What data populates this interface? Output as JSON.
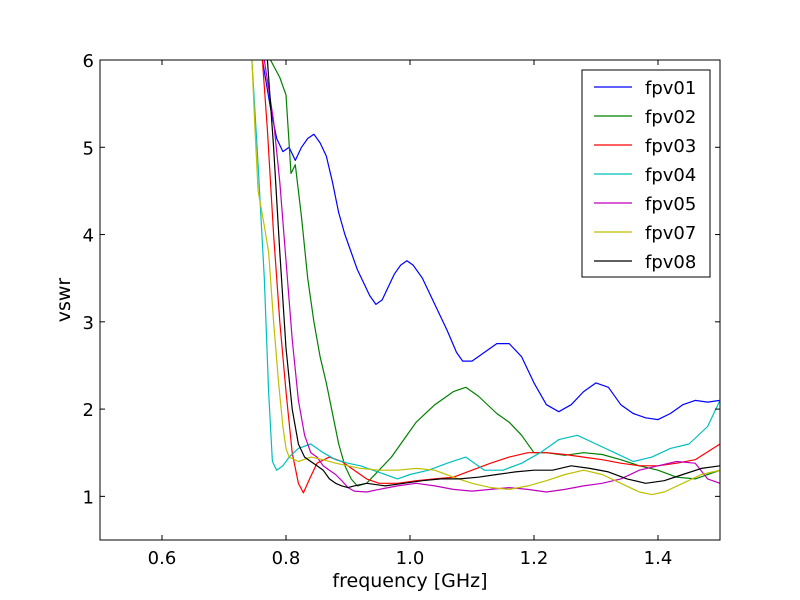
{
  "chart_data": {
    "type": "line",
    "title": "",
    "xlabel": "frequency [GHz]",
    "ylabel": "vswr",
    "xlim": [
      0.5,
      1.5
    ],
    "ylim": [
      0.5,
      6
    ],
    "xticks": [
      0.6,
      0.8,
      1.0,
      1.2,
      1.4
    ],
    "xtick_labels": [
      "0.6",
      "0.8",
      "1.0",
      "1.2",
      "1.4"
    ],
    "yticks": [
      1,
      2,
      3,
      4,
      5,
      6
    ],
    "ytick_labels": [
      "1",
      "2",
      "3",
      "4",
      "5",
      "6"
    ],
    "grid": false,
    "legend_position": "top-right",
    "series": [
      {
        "name": "fpv01",
        "color": "#0000ff",
        "points": [
          [
            0.762,
            6.0
          ],
          [
            0.775,
            5.45
          ],
          [
            0.785,
            5.1
          ],
          [
            0.795,
            4.95
          ],
          [
            0.805,
            5.0
          ],
          [
            0.815,
            4.85
          ],
          [
            0.825,
            5.0
          ],
          [
            0.835,
            5.1
          ],
          [
            0.845,
            5.15
          ],
          [
            0.855,
            5.05
          ],
          [
            0.865,
            4.9
          ],
          [
            0.875,
            4.6
          ],
          [
            0.885,
            4.25
          ],
          [
            0.895,
            4.0
          ],
          [
            0.905,
            3.8
          ],
          [
            0.915,
            3.6
          ],
          [
            0.925,
            3.45
          ],
          [
            0.935,
            3.3
          ],
          [
            0.945,
            3.2
          ],
          [
            0.955,
            3.25
          ],
          [
            0.965,
            3.4
          ],
          [
            0.975,
            3.55
          ],
          [
            0.985,
            3.65
          ],
          [
            0.995,
            3.7
          ],
          [
            1.005,
            3.65
          ],
          [
            1.02,
            3.5
          ],
          [
            1.04,
            3.2
          ],
          [
            1.06,
            2.9
          ],
          [
            1.075,
            2.65
          ],
          [
            1.085,
            2.55
          ],
          [
            1.1,
            2.55
          ],
          [
            1.12,
            2.65
          ],
          [
            1.14,
            2.75
          ],
          [
            1.16,
            2.75
          ],
          [
            1.18,
            2.6
          ],
          [
            1.2,
            2.3
          ],
          [
            1.22,
            2.05
          ],
          [
            1.24,
            1.97
          ],
          [
            1.26,
            2.05
          ],
          [
            1.28,
            2.2
          ],
          [
            1.3,
            2.3
          ],
          [
            1.32,
            2.25
          ],
          [
            1.34,
            2.05
          ],
          [
            1.36,
            1.95
          ],
          [
            1.38,
            1.9
          ],
          [
            1.4,
            1.88
          ],
          [
            1.42,
            1.95
          ],
          [
            1.44,
            2.05
          ],
          [
            1.46,
            2.1
          ],
          [
            1.48,
            2.08
          ],
          [
            1.5,
            2.1
          ]
        ]
      },
      {
        "name": "fpv02",
        "color": "#008000",
        "points": [
          [
            0.775,
            6.0
          ],
          [
            0.79,
            5.8
          ],
          [
            0.8,
            5.6
          ],
          [
            0.808,
            4.7
          ],
          [
            0.815,
            4.8
          ],
          [
            0.825,
            4.2
          ],
          [
            0.835,
            3.5
          ],
          [
            0.845,
            3.0
          ],
          [
            0.855,
            2.6
          ],
          [
            0.865,
            2.3
          ],
          [
            0.875,
            1.95
          ],
          [
            0.885,
            1.6
          ],
          [
            0.895,
            1.35
          ],
          [
            0.905,
            1.2
          ],
          [
            0.915,
            1.12
          ],
          [
            0.93,
            1.15
          ],
          [
            0.95,
            1.3
          ],
          [
            0.97,
            1.45
          ],
          [
            0.99,
            1.65
          ],
          [
            1.01,
            1.85
          ],
          [
            1.04,
            2.05
          ],
          [
            1.07,
            2.2
          ],
          [
            1.09,
            2.25
          ],
          [
            1.11,
            2.15
          ],
          [
            1.14,
            1.95
          ],
          [
            1.16,
            1.85
          ],
          [
            1.18,
            1.7
          ],
          [
            1.2,
            1.5
          ],
          [
            1.22,
            1.5
          ],
          [
            1.25,
            1.47
          ],
          [
            1.28,
            1.5
          ],
          [
            1.31,
            1.48
          ],
          [
            1.34,
            1.42
          ],
          [
            1.37,
            1.35
          ],
          [
            1.4,
            1.3
          ],
          [
            1.43,
            1.22
          ],
          [
            1.46,
            1.2
          ],
          [
            1.5,
            1.3
          ]
        ]
      },
      {
        "name": "fpv03",
        "color": "#ff0000",
        "points": [
          [
            0.762,
            6.0
          ],
          [
            0.77,
            5.2
          ],
          [
            0.78,
            4.0
          ],
          [
            0.79,
            3.0
          ],
          [
            0.8,
            2.2
          ],
          [
            0.81,
            1.5
          ],
          [
            0.82,
            1.15
          ],
          [
            0.828,
            1.04
          ],
          [
            0.838,
            1.2
          ],
          [
            0.85,
            1.38
          ],
          [
            0.87,
            1.45
          ],
          [
            0.89,
            1.4
          ],
          [
            0.91,
            1.3
          ],
          [
            0.93,
            1.2
          ],
          [
            0.95,
            1.15
          ],
          [
            0.98,
            1.15
          ],
          [
            1.01,
            1.18
          ],
          [
            1.04,
            1.2
          ],
          [
            1.07,
            1.22
          ],
          [
            1.1,
            1.3
          ],
          [
            1.13,
            1.38
          ],
          [
            1.16,
            1.45
          ],
          [
            1.19,
            1.5
          ],
          [
            1.22,
            1.5
          ],
          [
            1.25,
            1.48
          ],
          [
            1.28,
            1.45
          ],
          [
            1.31,
            1.42
          ],
          [
            1.34,
            1.38
          ],
          [
            1.37,
            1.35
          ],
          [
            1.4,
            1.35
          ],
          [
            1.43,
            1.38
          ],
          [
            1.46,
            1.42
          ],
          [
            1.5,
            1.6
          ]
        ]
      },
      {
        "name": "fpv04",
        "color": "#00bfbf",
        "points": [
          [
            0.745,
            6.0
          ],
          [
            0.755,
            4.8
          ],
          [
            0.765,
            3.5
          ],
          [
            0.772,
            2.2
          ],
          [
            0.778,
            1.4
          ],
          [
            0.785,
            1.3
          ],
          [
            0.795,
            1.35
          ],
          [
            0.805,
            1.45
          ],
          [
            0.82,
            1.55
          ],
          [
            0.84,
            1.6
          ],
          [
            0.86,
            1.5
          ],
          [
            0.88,
            1.42
          ],
          [
            0.9,
            1.38
          ],
          [
            0.92,
            1.35
          ],
          [
            0.94,
            1.3
          ],
          [
            0.96,
            1.25
          ],
          [
            0.98,
            1.2
          ],
          [
            1.0,
            1.25
          ],
          [
            1.03,
            1.3
          ],
          [
            1.06,
            1.38
          ],
          [
            1.09,
            1.45
          ],
          [
            1.12,
            1.3
          ],
          [
            1.15,
            1.3
          ],
          [
            1.18,
            1.38
          ],
          [
            1.21,
            1.5
          ],
          [
            1.24,
            1.65
          ],
          [
            1.27,
            1.7
          ],
          [
            1.3,
            1.6
          ],
          [
            1.33,
            1.5
          ],
          [
            1.36,
            1.4
          ],
          [
            1.39,
            1.45
          ],
          [
            1.42,
            1.55
          ],
          [
            1.45,
            1.6
          ],
          [
            1.48,
            1.8
          ],
          [
            1.5,
            2.1
          ]
        ]
      },
      {
        "name": "fpv05",
        "color": "#bf00bf",
        "points": [
          [
            0.765,
            6.0
          ],
          [
            0.78,
            5.3
          ],
          [
            0.79,
            4.6
          ],
          [
            0.8,
            3.7
          ],
          [
            0.81,
            2.8
          ],
          [
            0.82,
            2.1
          ],
          [
            0.83,
            1.7
          ],
          [
            0.84,
            1.5
          ],
          [
            0.85,
            1.45
          ],
          [
            0.86,
            1.35
          ],
          [
            0.87,
            1.3
          ],
          [
            0.88,
            1.25
          ],
          [
            0.89,
            1.18
          ],
          [
            0.9,
            1.1
          ],
          [
            0.91,
            1.06
          ],
          [
            0.93,
            1.05
          ],
          [
            0.95,
            1.08
          ],
          [
            0.98,
            1.12
          ],
          [
            1.01,
            1.15
          ],
          [
            1.04,
            1.12
          ],
          [
            1.07,
            1.08
          ],
          [
            1.1,
            1.06
          ],
          [
            1.13,
            1.08
          ],
          [
            1.16,
            1.1
          ],
          [
            1.19,
            1.08
          ],
          [
            1.22,
            1.05
          ],
          [
            1.25,
            1.08
          ],
          [
            1.28,
            1.12
          ],
          [
            1.31,
            1.15
          ],
          [
            1.34,
            1.2
          ],
          [
            1.37,
            1.3
          ],
          [
            1.4,
            1.35
          ],
          [
            1.43,
            1.4
          ],
          [
            1.46,
            1.38
          ],
          [
            1.48,
            1.2
          ],
          [
            1.5,
            1.15
          ]
        ]
      },
      {
        "name": "fpv07",
        "color": "#bfbf00",
        "points": [
          [
            0.745,
            6.0
          ],
          [
            0.75,
            5.2
          ],
          [
            0.755,
            4.5
          ],
          [
            0.765,
            4.1
          ],
          [
            0.772,
            3.8
          ],
          [
            0.78,
            3.0
          ],
          [
            0.788,
            2.3
          ],
          [
            0.795,
            1.8
          ],
          [
            0.8,
            1.55
          ],
          [
            0.805,
            1.45
          ],
          [
            0.82,
            1.4
          ],
          [
            0.84,
            1.45
          ],
          [
            0.86,
            1.42
          ],
          [
            0.88,
            1.38
          ],
          [
            0.9,
            1.35
          ],
          [
            0.92,
            1.32
          ],
          [
            0.95,
            1.3
          ],
          [
            0.98,
            1.3
          ],
          [
            1.01,
            1.32
          ],
          [
            1.04,
            1.3
          ],
          [
            1.07,
            1.22
          ],
          [
            1.1,
            1.15
          ],
          [
            1.13,
            1.1
          ],
          [
            1.16,
            1.08
          ],
          [
            1.19,
            1.12
          ],
          [
            1.22,
            1.18
          ],
          [
            1.25,
            1.25
          ],
          [
            1.28,
            1.3
          ],
          [
            1.31,
            1.25
          ],
          [
            1.34,
            1.15
          ],
          [
            1.37,
            1.05
          ],
          [
            1.39,
            1.02
          ],
          [
            1.41,
            1.05
          ],
          [
            1.44,
            1.15
          ],
          [
            1.47,
            1.25
          ],
          [
            1.5,
            1.3
          ]
        ]
      },
      {
        "name": "fpv08",
        "color": "#000000",
        "points": [
          [
            0.77,
            6.0
          ],
          [
            0.78,
            5.0
          ],
          [
            0.79,
            3.8
          ],
          [
            0.8,
            2.7
          ],
          [
            0.81,
            2.0
          ],
          [
            0.82,
            1.6
          ],
          [
            0.83,
            1.45
          ],
          [
            0.84,
            1.4
          ],
          [
            0.85,
            1.35
          ],
          [
            0.86,
            1.3
          ],
          [
            0.87,
            1.2
          ],
          [
            0.88,
            1.15
          ],
          [
            0.89,
            1.12
          ],
          [
            0.9,
            1.1
          ],
          [
            0.91,
            1.12
          ],
          [
            0.93,
            1.15
          ],
          [
            0.96,
            1.12
          ],
          [
            0.99,
            1.15
          ],
          [
            1.02,
            1.18
          ],
          [
            1.05,
            1.2
          ],
          [
            1.08,
            1.2
          ],
          [
            1.11,
            1.22
          ],
          [
            1.14,
            1.25
          ],
          [
            1.17,
            1.28
          ],
          [
            1.2,
            1.3
          ],
          [
            1.23,
            1.3
          ],
          [
            1.26,
            1.35
          ],
          [
            1.29,
            1.32
          ],
          [
            1.32,
            1.28
          ],
          [
            1.35,
            1.2
          ],
          [
            1.38,
            1.15
          ],
          [
            1.41,
            1.18
          ],
          [
            1.44,
            1.25
          ],
          [
            1.47,
            1.32
          ],
          [
            1.5,
            1.35
          ]
        ]
      }
    ]
  }
}
